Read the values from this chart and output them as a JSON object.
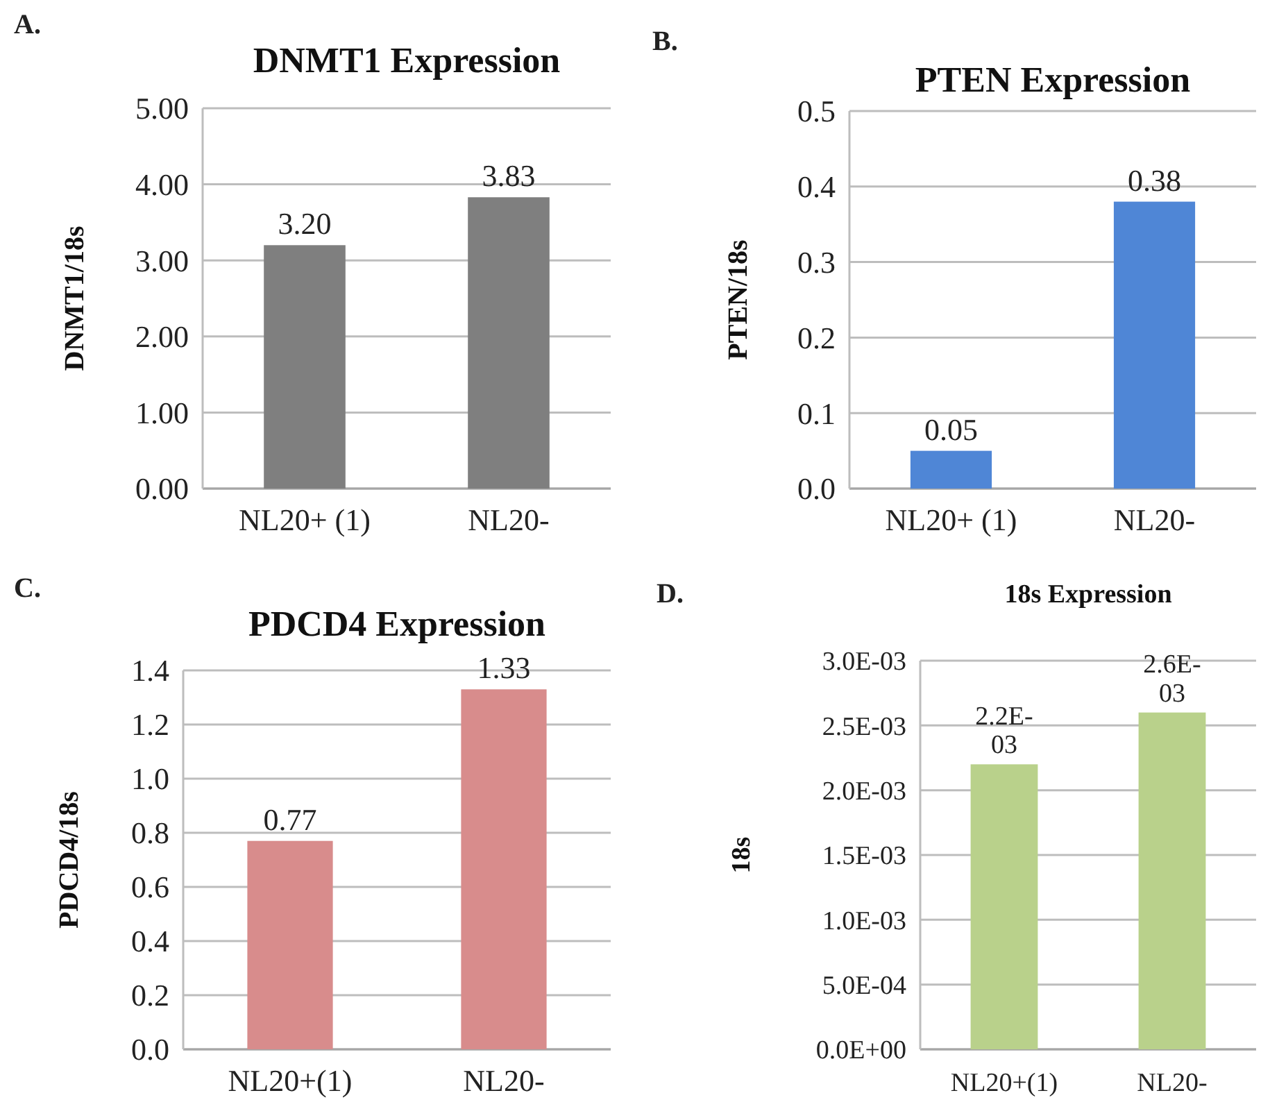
{
  "chart_data": [
    {
      "type": "bar",
      "title": "DNMT1 Expression",
      "ylabel": "DNMT1/18s",
      "categories": [
        "NL20+ (1)",
        "NL20-"
      ],
      "values": [
        3.2,
        3.83
      ],
      "color": "#7f7f7f",
      "value_labels": [
        "3.20",
        "3.83"
      ],
      "ylim": [
        0,
        5
      ],
      "yticks": [
        {
          "value": 0,
          "label": "0.00"
        },
        {
          "value": 1,
          "label": "1.00"
        },
        {
          "value": 2,
          "label": "2.00"
        },
        {
          "value": 3,
          "label": "3.00"
        },
        {
          "value": 4,
          "label": "4.00"
        },
        {
          "value": 5,
          "label": "5.00"
        }
      ],
      "grid": "y",
      "annotations": [
        "A."
      ]
    },
    {
      "type": "bar",
      "title": "PTEN Expression",
      "ylabel": "PTEN/18s",
      "categories": [
        "NL20+ (1)",
        "NL20-"
      ],
      "values": [
        0.05,
        0.38
      ],
      "color": "#4f86d6",
      "value_labels": [
        "0.05",
        "0.38"
      ],
      "ylim": [
        0,
        0.5
      ],
      "yticks": [
        {
          "value": 0,
          "label": "0.0"
        },
        0.1,
        0.2,
        0.3,
        0.4,
        0.5
      ],
      "grid": "y",
      "annotations": [
        "B."
      ]
    },
    {
      "type": "bar",
      "title": "PDCD4 Expression",
      "ylabel": "PDCD4/18s",
      "categories": [
        "NL20+(1)",
        "NL20-"
      ],
      "values": [
        0.77,
        1.33
      ],
      "color": "#d88c8c",
      "value_labels": [
        "0.77",
        "1.33"
      ],
      "ylim": [
        0,
        1.4
      ],
      "yticks": [
        {
          "value": 0,
          "label": "0.0"
        },
        0.2,
        0.4,
        0.6,
        0.8,
        {
          "value": 1,
          "label": "1.0"
        },
        1.2,
        1.4
      ],
      "grid": "y",
      "annotations": [
        "C."
      ]
    },
    {
      "type": "bar",
      "title": "18s Expression",
      "ylabel": "18s",
      "categories": [
        "NL20+(1)",
        "NL20-"
      ],
      "values": [
        0.0022,
        0.0026
      ],
      "color": "#b9d18b",
      "value_labels": [
        "2.2E-03",
        "2.6E-03"
      ],
      "ylim": [
        0,
        0.003
      ],
      "yticks": [
        {
          "value": 0,
          "label": "0.0E+00"
        },
        {
          "value": 0.0005,
          "label": "5.0E-04"
        },
        {
          "value": 0.001,
          "label": "1.0E-03"
        },
        {
          "value": 0.0015,
          "label": "1.5E-03"
        },
        {
          "value": 0.002,
          "label": "2.0E-03"
        },
        {
          "value": 0.0025,
          "label": "2.5E-03"
        },
        {
          "value": 0.003,
          "label": "3.0E-03"
        }
      ],
      "grid": "y",
      "annotations": [
        "D."
      ]
    }
  ]
}
